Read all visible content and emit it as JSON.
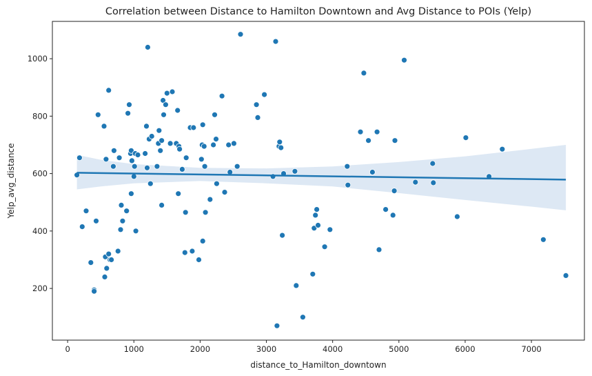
{
  "chart_data": {
    "type": "scatter",
    "title": "Correlation between Distance to Hamilton Downtown and Avg Distance to POIs (Yelp)",
    "xlabel": "distance_to_Hamilton_downtown",
    "ylabel": "Yelp_avg_distance",
    "xlim": [
      -230,
      7800
    ],
    "ylim": [
      20,
      1130
    ],
    "xticks": [
      0,
      1000,
      2000,
      3000,
      4000,
      5000,
      6000,
      7000
    ],
    "yticks": [
      200,
      400,
      600,
      800,
      1000
    ],
    "xtick_labels": [
      "0",
      "1000",
      "2000",
      "3000",
      "4000",
      "5000",
      "6000",
      "7000"
    ],
    "ytick_labels": [
      "200",
      "400",
      "600",
      "800",
      "1000"
    ],
    "grid": false,
    "legend": "none",
    "colors": {
      "points": "#1f77b4",
      "line": "#1f77b4",
      "band": "#c6d9ec"
    },
    "regression": {
      "x": [
        140,
        7520
      ],
      "y": [
        603,
        579
      ]
    },
    "confidence_band": {
      "x": [
        140,
        500,
        1000,
        2000,
        3000,
        4000,
        5000,
        6000,
        7000,
        7520
      ],
      "upper": [
        665,
        648,
        633,
        620,
        618,
        625,
        640,
        660,
        686,
        700
      ],
      "lower": [
        545,
        555,
        566,
        574,
        566,
        555,
        532,
        508,
        485,
        472
      ]
    },
    "points": [
      [
        140,
        595
      ],
      [
        180,
        655
      ],
      [
        220,
        415
      ],
      [
        280,
        470
      ],
      [
        350,
        290
      ],
      [
        400,
        195
      ],
      [
        400,
        190
      ],
      [
        430,
        435
      ],
      [
        460,
        805
      ],
      [
        550,
        765
      ],
      [
        560,
        240
      ],
      [
        570,
        310
      ],
      [
        580,
        650
      ],
      [
        590,
        270
      ],
      [
        620,
        890
      ],
      [
        620,
        320
      ],
      [
        640,
        300
      ],
      [
        660,
        300
      ],
      [
        690,
        625
      ],
      [
        700,
        680
      ],
      [
        760,
        330
      ],
      [
        780,
        655
      ],
      [
        800,
        405
      ],
      [
        810,
        490
      ],
      [
        830,
        435
      ],
      [
        890,
        470
      ],
      [
        910,
        810
      ],
      [
        930,
        840
      ],
      [
        950,
        670
      ],
      [
        960,
        530
      ],
      [
        960,
        680
      ],
      [
        970,
        645
      ],
      [
        1000,
        590
      ],
      [
        1010,
        625
      ],
      [
        1020,
        670
      ],
      [
        1030,
        400
      ],
      [
        1060,
        665
      ],
      [
        1170,
        670
      ],
      [
        1190,
        765
      ],
      [
        1200,
        620
      ],
      [
        1210,
        1040
      ],
      [
        1230,
        720
      ],
      [
        1250,
        565
      ],
      [
        1270,
        730
      ],
      [
        1350,
        625
      ],
      [
        1370,
        705
      ],
      [
        1380,
        750
      ],
      [
        1400,
        680
      ],
      [
        1420,
        715
      ],
      [
        1420,
        490
      ],
      [
        1440,
        855
      ],
      [
        1450,
        805
      ],
      [
        1480,
        840
      ],
      [
        1500,
        880
      ],
      [
        1550,
        705
      ],
      [
        1580,
        885
      ],
      [
        1640,
        705
      ],
      [
        1660,
        820
      ],
      [
        1670,
        530
      ],
      [
        1680,
        695
      ],
      [
        1690,
        685
      ],
      [
        1730,
        615
      ],
      [
        1770,
        325
      ],
      [
        1780,
        465
      ],
      [
        1790,
        655
      ],
      [
        1850,
        760
      ],
      [
        1880,
        330
      ],
      [
        1900,
        760
      ],
      [
        1980,
        300
      ],
      [
        2020,
        650
      ],
      [
        2030,
        700
      ],
      [
        2040,
        770
      ],
      [
        2040,
        365
      ],
      [
        2060,
        695
      ],
      [
        2070,
        625
      ],
      [
        2080,
        465
      ],
      [
        2150,
        510
      ],
      [
        2200,
        700
      ],
      [
        2220,
        805
      ],
      [
        2240,
        720
      ],
      [
        2250,
        565
      ],
      [
        2330,
        870
      ],
      [
        2370,
        535
      ],
      [
        2430,
        700
      ],
      [
        2450,
        605
      ],
      [
        2510,
        705
      ],
      [
        2560,
        625
      ],
      [
        2610,
        1085
      ],
      [
        2850,
        840
      ],
      [
        2870,
        795
      ],
      [
        2970,
        875
      ],
      [
        3100,
        590
      ],
      [
        3140,
        1060
      ],
      [
        3160,
        70
      ],
      [
        3190,
        695
      ],
      [
        3200,
        710
      ],
      [
        3220,
        690
      ],
      [
        3240,
        385
      ],
      [
        3260,
        600
      ],
      [
        3430,
        608
      ],
      [
        3450,
        210
      ],
      [
        3550,
        100
      ],
      [
        3700,
        250
      ],
      [
        3720,
        410
      ],
      [
        3740,
        455
      ],
      [
        3760,
        475
      ],
      [
        3780,
        420
      ],
      [
        3880,
        345
      ],
      [
        3960,
        405
      ],
      [
        4220,
        625
      ],
      [
        4230,
        560
      ],
      [
        4420,
        745
      ],
      [
        4470,
        950
      ],
      [
        4540,
        715
      ],
      [
        4600,
        605
      ],
      [
        4670,
        745
      ],
      [
        4700,
        335
      ],
      [
        4800,
        475
      ],
      [
        4910,
        455
      ],
      [
        4930,
        540
      ],
      [
        4940,
        715
      ],
      [
        5080,
        995
      ],
      [
        5250,
        570
      ],
      [
        5510,
        635
      ],
      [
        5520,
        568
      ],
      [
        5880,
        450
      ],
      [
        6010,
        725
      ],
      [
        6360,
        590
      ],
      [
        6560,
        685
      ],
      [
        7180,
        370
      ],
      [
        7520,
        245
      ]
    ]
  }
}
